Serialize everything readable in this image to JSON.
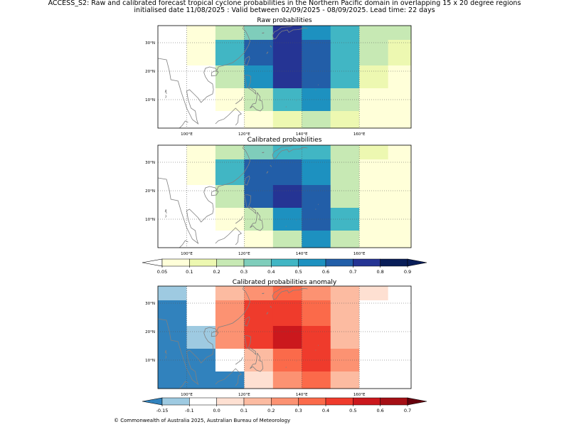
{
  "title_line1": "ACCESS_S2: Raw and calibrated forecast tropical cyclone probabilities in the Northern Pacific domain in overlapping 15 x 20 degree regions",
  "title_line2": "initialised date 11/08/2025 :  Valid between 02/09/2025 - 08/09/2025. Lead time: 22 days",
  "footer": "© Commonwealth of Australia 2025, Australian Bureau of Meteorology",
  "lon_ticks": [
    "100°E",
    "120°E",
    "140°E",
    "160°E"
  ],
  "lat_ticks": [
    "30°N",
    "20°N",
    "10°N"
  ],
  "panels": [
    {
      "title": "Raw probabilities",
      "scale": "prob",
      "grid": [
        [
          0,
          1,
          3,
          4,
          8,
          6,
          5,
          3,
          3
        ],
        [
          0,
          1,
          5,
          7,
          8,
          7,
          5,
          3,
          2
        ],
        [
          0,
          0,
          3,
          6,
          8,
          7,
          5,
          2,
          1
        ],
        [
          0,
          0,
          1,
          3,
          5,
          6,
          3,
          1,
          1
        ],
        [
          0,
          0,
          0,
          1,
          2,
          3,
          2,
          1,
          1
        ]
      ]
    },
    {
      "title": "Calibrated probabilities",
      "scale": "prob",
      "grid": [
        [
          0,
          1,
          3,
          4,
          5,
          5,
          3,
          2,
          1
        ],
        [
          0,
          1,
          5,
          7,
          7,
          6,
          3,
          1,
          1
        ],
        [
          0,
          0,
          3,
          7,
          8,
          7,
          3,
          1,
          1
        ],
        [
          0,
          0,
          1,
          3,
          6,
          7,
          5,
          1,
          1
        ],
        [
          0,
          0,
          0,
          1,
          3,
          6,
          3,
          1,
          1
        ]
      ]
    },
    {
      "title": "Calibrated probabilities anomaly",
      "scale": "anom",
      "grid": [
        [
          1,
          2,
          4,
          5,
          6,
          5,
          4,
          3,
          2
        ],
        [
          0,
          2,
          5,
          7,
          7,
          6,
          4,
          2,
          2
        ],
        [
          0,
          1,
          5,
          7,
          8,
          7,
          4,
          2,
          2
        ],
        [
          0,
          0,
          2,
          4,
          6,
          7,
          5,
          2,
          2
        ],
        [
          0,
          0,
          0,
          3,
          5,
          6,
          4,
          2,
          2
        ]
      ]
    }
  ],
  "prob_colorbar": {
    "colors": [
      "#ffffd9",
      "#edf8b1",
      "#c7e9b4",
      "#7fcdbb",
      "#41b6c4",
      "#1d91c0",
      "#225ea8",
      "#253494",
      "#081d58"
    ],
    "under_color": "#ffffff",
    "labels": [
      "0.05",
      "0.1",
      "0.2",
      "0.3",
      "0.4",
      "0.5",
      "0.6",
      "0.7",
      "0.8",
      "0.9"
    ]
  },
  "anom_colorbar": {
    "colors": [
      "#9ecae1",
      "#ffffff",
      "#fee0d2",
      "#fcbba1",
      "#fc9272",
      "#fb6a4a",
      "#ef3b2c",
      "#cb181d",
      "#a50f15"
    ],
    "under_color": "#3182bd",
    "over_color": "#67000d",
    "labels": [
      "-0.15",
      "-0.1",
      "0.0",
      "0.1",
      "0.2",
      "0.3",
      "0.4",
      "0.5",
      "0.6",
      "0.7"
    ]
  }
}
